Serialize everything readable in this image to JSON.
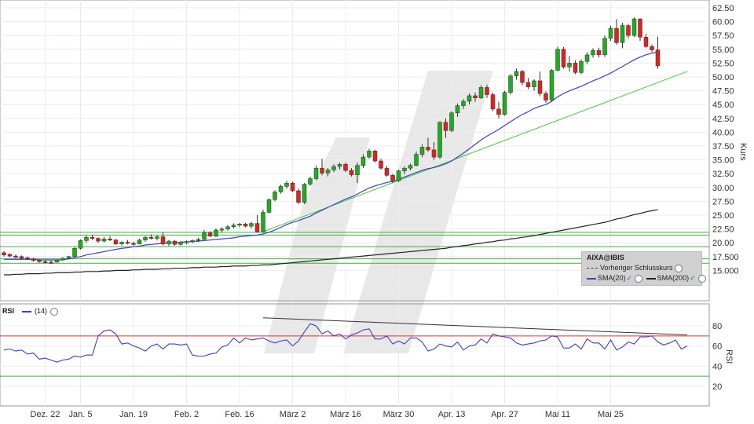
{
  "chart_data": [
    {
      "type": "candlestick",
      "title": "AIXA@IBIS",
      "ylabel": "Kurs",
      "ylim": [
        12.5,
        62.5
      ],
      "yticks": [
        "15.000",
        "17.500",
        "20.00",
        "22.50",
        "25.00",
        "27.50",
        "30.00",
        "32.50",
        "35.00",
        "37.50",
        "40.00",
        "42.50",
        "45.00",
        "47.50",
        "50.00",
        "52.50",
        "55.00",
        "57.50",
        "60.00",
        "62.50"
      ],
      "x_labels": [
        "Dez. 22",
        "Jan. 5",
        "Jan. 19",
        "Feb. 2",
        "Feb. 16",
        "März 2",
        "März 16",
        "März 30",
        "Apr. 13",
        "Apr. 27",
        "Mai 11",
        "Mai 25"
      ],
      "x_label_index": [
        7,
        13,
        22,
        31,
        40,
        49,
        58,
        67,
        76,
        85,
        94,
        103
      ],
      "candles": [
        [
          18.2,
          18.5,
          17.5,
          17.8
        ],
        [
          17.9,
          18.1,
          17.4,
          17.6
        ],
        [
          17.6,
          17.9,
          17.2,
          17.5
        ],
        [
          17.5,
          17.7,
          17.0,
          17.2
        ],
        [
          17.3,
          17.5,
          16.9,
          17.1
        ],
        [
          17.1,
          17.3,
          16.6,
          16.8
        ],
        [
          16.8,
          17.0,
          16.4,
          16.6
        ],
        [
          16.6,
          16.9,
          16.3,
          16.5
        ],
        [
          16.5,
          16.8,
          16.2,
          16.4
        ],
        [
          16.5,
          17.0,
          16.4,
          16.9
        ],
        [
          16.9,
          17.4,
          16.8,
          17.2
        ],
        [
          17.2,
          17.6,
          17.0,
          17.5
        ],
        [
          17.5,
          19.2,
          17.4,
          19.0
        ],
        [
          19.0,
          20.6,
          18.8,
          20.4
        ],
        [
          20.4,
          21.3,
          20.0,
          21.0
        ],
        [
          21.0,
          21.4,
          20.5,
          20.8
        ],
        [
          20.8,
          21.0,
          20.0,
          20.3
        ],
        [
          20.3,
          21.0,
          20.1,
          20.7
        ],
        [
          20.7,
          21.2,
          20.3,
          20.5
        ],
        [
          20.5,
          20.7,
          19.6,
          19.8
        ],
        [
          19.8,
          20.3,
          19.5,
          20.1
        ],
        [
          20.1,
          20.5,
          19.7,
          19.9
        ],
        [
          19.9,
          20.2,
          19.5,
          19.8
        ],
        [
          19.8,
          20.7,
          19.7,
          20.5
        ],
        [
          20.5,
          21.2,
          20.2,
          21.0
        ],
        [
          21.0,
          21.5,
          20.6,
          20.8
        ],
        [
          20.8,
          21.3,
          20.4,
          21.1
        ],
        [
          21.1,
          21.9,
          19.5,
          19.8
        ],
        [
          19.8,
          20.5,
          19.4,
          20.3
        ],
        [
          20.3,
          20.5,
          19.5,
          19.7
        ],
        [
          19.7,
          20.3,
          19.5,
          20.1
        ],
        [
          20.1,
          20.4,
          19.7,
          20.2
        ],
        [
          20.2,
          20.6,
          19.9,
          20.4
        ],
        [
          20.4,
          20.9,
          20.1,
          20.6
        ],
        [
          20.6,
          22.3,
          20.5,
          21.8
        ],
        [
          21.8,
          22.1,
          21.0,
          21.2
        ],
        [
          21.2,
          22.6,
          21.0,
          22.3
        ],
        [
          22.3,
          22.8,
          21.9,
          22.5
        ],
        [
          22.5,
          23.2,
          22.2,
          22.9
        ],
        [
          22.9,
          23.5,
          22.6,
          23.2
        ],
        [
          23.2,
          23.6,
          22.8,
          23.4
        ],
        [
          23.4,
          23.6,
          22.8,
          23.0
        ],
        [
          23.0,
          23.8,
          22.6,
          23.5
        ],
        [
          23.5,
          25.0,
          21.8,
          22.0
        ],
        [
          22.0,
          26.0,
          21.8,
          25.5
        ],
        [
          25.5,
          28.0,
          25.3,
          27.8
        ],
        [
          27.8,
          29.5,
          27.5,
          29.2
        ],
        [
          29.2,
          30.5,
          28.9,
          30.2
        ],
        [
          30.2,
          31.2,
          29.8,
          30.8
        ],
        [
          30.8,
          31.0,
          29.2,
          29.4
        ],
        [
          29.4,
          29.8,
          27.0,
          27.3
        ],
        [
          27.3,
          30.8,
          27.0,
          30.6
        ],
        [
          30.6,
          32.0,
          30.3,
          31.6
        ],
        [
          31.6,
          34.0,
          31.3,
          33.5
        ],
        [
          33.5,
          35.2,
          32.2,
          32.6
        ],
        [
          32.6,
          33.5,
          32.0,
          33.2
        ],
        [
          33.2,
          34.2,
          32.8,
          33.8
        ],
        [
          33.8,
          34.5,
          33.3,
          34.2
        ],
        [
          34.2,
          34.5,
          32.8,
          33.1
        ],
        [
          33.1,
          33.5,
          32.0,
          32.3
        ],
        [
          32.3,
          34.5,
          30.8,
          34.0
        ],
        [
          34.0,
          36.0,
          33.5,
          35.5
        ],
        [
          35.5,
          37.0,
          35.2,
          36.6
        ],
        [
          36.6,
          36.8,
          34.5,
          34.8
        ],
        [
          34.8,
          35.2,
          33.2,
          33.5
        ],
        [
          33.5,
          33.9,
          32.0,
          32.2
        ],
        [
          32.2,
          32.5,
          30.8,
          31.2
        ],
        [
          31.2,
          33.2,
          31.0,
          33.0
        ],
        [
          33.0,
          33.8,
          32.4,
          33.5
        ],
        [
          33.5,
          34.3,
          33.1,
          34.0
        ],
        [
          34.0,
          36.5,
          33.8,
          36.0
        ],
        [
          36.0,
          37.8,
          35.5,
          37.3
        ],
        [
          37.3,
          39.0,
          36.5,
          36.8
        ],
        [
          36.8,
          38.2,
          35.0,
          35.5
        ],
        [
          35.5,
          42.0,
          35.2,
          41.8
        ],
        [
          41.8,
          42.5,
          39.0,
          40.3
        ],
        [
          40.3,
          43.8,
          40.0,
          43.5
        ],
        [
          43.5,
          45.2,
          42.8,
          44.8
        ],
        [
          44.8,
          46.0,
          44.2,
          45.6
        ],
        [
          45.6,
          47.0,
          45.0,
          46.6
        ],
        [
          46.6,
          47.2,
          45.5,
          46.2
        ],
        [
          46.2,
          48.5,
          46.0,
          48.1
        ],
        [
          48.1,
          48.6,
          46.2,
          46.8
        ],
        [
          46.8,
          47.2,
          43.8,
          44.2
        ],
        [
          44.2,
          45.5,
          42.5,
          43.2
        ],
        [
          43.2,
          47.5,
          43.0,
          47.2
        ],
        [
          47.2,
          50.5,
          46.8,
          50.2
        ],
        [
          50.2,
          51.5,
          49.5,
          51.0
        ],
        [
          51.0,
          51.3,
          48.5,
          49.0
        ],
        [
          49.0,
          49.8,
          47.8,
          48.2
        ],
        [
          48.2,
          49.6,
          47.5,
          49.3
        ],
        [
          49.3,
          51.0,
          46.5,
          47.0
        ],
        [
          47.0,
          47.4,
          45.3,
          45.8
        ],
        [
          45.8,
          51.4,
          45.5,
          51.2
        ],
        [
          51.2,
          55.5,
          51.0,
          55.0
        ],
        [
          55.0,
          55.4,
          51.5,
          51.8
        ],
        [
          51.8,
          53.8,
          51.0,
          52.5
        ],
        [
          52.5,
          53.0,
          50.5,
          50.8
        ],
        [
          50.8,
          53.2,
          50.5,
          52.8
        ],
        [
          52.8,
          54.5,
          52.3,
          54.0
        ],
        [
          54.0,
          55.2,
          53.5,
          54.8
        ],
        [
          54.8,
          55.3,
          53.5,
          54.0
        ],
        [
          54.0,
          57.5,
          53.6,
          57.0
        ],
        [
          57.0,
          59.3,
          56.5,
          58.8
        ],
        [
          58.8,
          60.5,
          55.8,
          56.2
        ],
        [
          56.2,
          59.8,
          55.2,
          59.3
        ],
        [
          59.3,
          59.6,
          57.0,
          57.5
        ],
        [
          57.5,
          60.8,
          57.2,
          60.5
        ],
        [
          60.5,
          60.6,
          56.5,
          57.2
        ],
        [
          57.2,
          57.8,
          55.2,
          55.5
        ],
        [
          55.5,
          55.9,
          54.5,
          54.9
        ],
        [
          54.9,
          57.3,
          51.5,
          52.0
        ]
      ],
      "series": [
        {
          "name": "SMA(20)",
          "color": "#3f3fbf",
          "values": [
            17.0,
            17.0,
            17.0,
            17.0,
            17.0,
            17.0,
            16.9,
            16.9,
            16.9,
            16.9,
            16.9,
            17.1,
            17.3,
            17.5,
            17.8,
            18.0,
            18.2,
            18.4,
            18.6,
            18.8,
            19.0,
            19.1,
            19.3,
            19.4,
            19.6,
            19.7,
            19.8,
            19.9,
            20.0,
            20.0,
            20.1,
            20.2,
            20.2,
            20.3,
            20.4,
            20.5,
            20.6,
            20.7,
            20.8,
            20.9,
            21.1,
            21.2,
            21.3,
            21.4,
            21.6,
            21.9,
            22.3,
            22.8,
            23.3,
            23.7,
            24.0,
            24.4,
            24.8,
            25.4,
            25.9,
            26.4,
            26.9,
            27.4,
            27.9,
            28.3,
            28.8,
            29.4,
            29.9,
            30.3,
            30.6,
            30.9,
            31.1,
            31.5,
            31.9,
            32.3,
            32.7,
            33.1,
            33.4,
            33.6,
            33.9,
            34.3,
            34.8,
            35.5,
            36.2,
            37.0,
            37.8,
            38.6,
            39.3,
            39.9,
            40.5,
            41.2,
            41.9,
            42.6,
            43.2,
            43.7,
            44.3,
            44.7,
            45.0,
            45.6,
            46.4,
            47.0,
            47.5,
            47.9,
            48.3,
            48.8,
            49.3,
            49.7,
            50.2,
            50.7,
            51.3,
            51.9,
            52.5,
            53.1,
            53.6,
            54.0,
            54.3,
            54.5
          ]
        },
        {
          "name": "SMA(200)",
          "color": "#222222",
          "values": [
            14.2,
            14.2,
            14.3,
            14.3,
            14.4,
            14.4,
            14.4,
            14.5,
            14.5,
            14.6,
            14.6,
            14.6,
            14.7,
            14.7,
            14.8,
            14.8,
            14.8,
            14.9,
            14.9,
            15.0,
            15.0,
            15.0,
            15.1,
            15.1,
            15.2,
            15.2,
            15.2,
            15.3,
            15.3,
            15.4,
            15.4,
            15.4,
            15.5,
            15.5,
            15.6,
            15.6,
            15.6,
            15.7,
            15.7,
            15.8,
            15.8,
            15.8,
            15.9,
            15.9,
            16.0,
            16.0,
            16.1,
            16.2,
            16.3,
            16.4,
            16.5,
            16.6,
            16.7,
            16.8,
            16.9,
            17.0,
            17.1,
            17.2,
            17.3,
            17.4,
            17.5,
            17.6,
            17.7,
            17.8,
            17.9,
            18.0,
            18.1,
            18.2,
            18.3,
            18.4,
            18.5,
            18.6,
            18.7,
            18.8,
            18.9,
            19.0,
            19.2,
            19.3,
            19.5,
            19.6,
            19.8,
            19.9,
            20.1,
            20.2,
            20.4,
            20.5,
            20.7,
            20.8,
            21.0,
            21.1,
            21.3,
            21.5,
            21.7,
            21.9,
            22.1,
            22.3,
            22.5,
            22.7,
            22.9,
            23.1,
            23.3,
            23.5,
            23.7,
            24.0,
            24.3,
            24.5,
            24.8,
            25.1,
            25.3,
            25.6,
            25.8,
            26.0
          ]
        },
        {
          "name": "Vorheriger Schlusskurs",
          "color": "#333333",
          "values": []
        }
      ],
      "annotations": {
        "trendline": {
          "color": "#44cc44",
          "from": [
            44,
            22.0
          ],
          "to": [
            116,
            51.0
          ]
        },
        "horizontal_lines": [
          {
            "y": 21.9,
            "color": "#44aa44"
          },
          {
            "y": 21.4,
            "color": "#44aa44"
          },
          {
            "y": 19.3,
            "color": "#44aa44"
          },
          {
            "y": 17.1,
            "color": "#44aa44"
          },
          {
            "y": 16.3,
            "color": "#44aa44"
          }
        ]
      },
      "up_color": "#22aa22",
      "down_color": "#dd2222",
      "grid": true,
      "legend": "bottom-right"
    },
    {
      "type": "line",
      "title": "RSI",
      "period_label": "(14)",
      "ylabel": "RSI",
      "ylim": [
        10,
        90
      ],
      "yticks": [
        "20",
        "40",
        "60",
        "80"
      ],
      "reference_lines": [
        {
          "y": 70,
          "color": "#dd3333"
        },
        {
          "y": 30,
          "color": "#44aa44"
        }
      ],
      "trendline": {
        "color": "#333333",
        "from": [
          44,
          88
        ],
        "to": [
          116,
          71
        ]
      },
      "series": [
        {
          "name": "RSI",
          "color": "#3f3fbf",
          "values": [
            56,
            57,
            55,
            56,
            52,
            53,
            47,
            48,
            46,
            44,
            46,
            47,
            50,
            49,
            51,
            51,
            70,
            75,
            76,
            72,
            62,
            63,
            60,
            58,
            55,
            60,
            62,
            57,
            62,
            62,
            61,
            62,
            51,
            50,
            50,
            52,
            53,
            59,
            61,
            68,
            63,
            68,
            66,
            67,
            68,
            65,
            63,
            65,
            66,
            60,
            65,
            74,
            82,
            80,
            72,
            75,
            70,
            72,
            67,
            71,
            73,
            76,
            77,
            67,
            67,
            70,
            62,
            65,
            62,
            68,
            68,
            64,
            55,
            57,
            62,
            60,
            59,
            64,
            56,
            60,
            61,
            67,
            63,
            72,
            70,
            69,
            68,
            63,
            61,
            62,
            63,
            65,
            66,
            70,
            69,
            58,
            58,
            62,
            57,
            67,
            63,
            63,
            57,
            66,
            56,
            59,
            64,
            62,
            69,
            69,
            70,
            64,
            61,
            63,
            66,
            57,
            60
          ]
        }
      ],
      "grid": true,
      "legend": "top-left"
    }
  ],
  "legend_box": {
    "title": "AIXA@IBIS",
    "items": [
      "Vorheriger Schlusskurs",
      "SMA(20)",
      "SMA(200)"
    ]
  },
  "rsi_header": {
    "name": "RSI",
    "period": "(14)"
  },
  "axes": {
    "price_title": "Kurs",
    "rsi_title": "RSI"
  }
}
